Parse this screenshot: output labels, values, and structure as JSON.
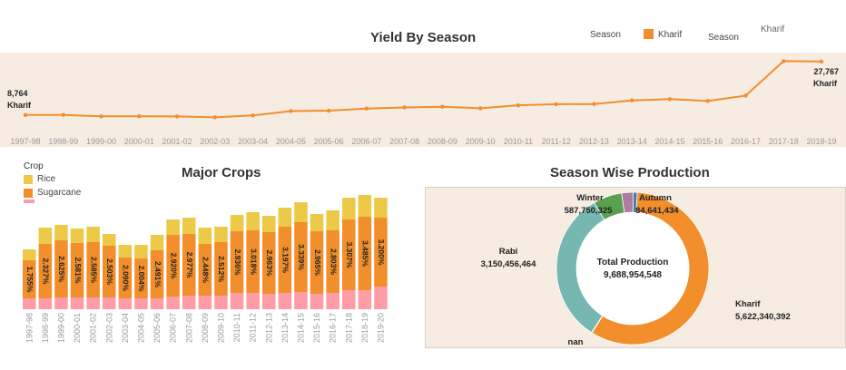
{
  "colors": {
    "kharif": "#f28e2b",
    "rice": "#edc948",
    "sugarcane": "#f28e2b",
    "third_crop": "#ff9da7",
    "rabi": "#76b7b2",
    "winter": "#59a14f",
    "autumn": "#4e79a7",
    "other": "#b07aa1",
    "panel": "#f6ece1"
  },
  "top_legend": {
    "season_label_1": "Season",
    "kharif_label": "Kharif",
    "season_label_2": "Season",
    "kharif_label_2": "Kharif"
  },
  "crops_legend": {
    "title": "Crop",
    "items": [
      "Rice",
      "Sugarcane"
    ]
  },
  "chart_data": [
    {
      "type": "line",
      "title": "Yield By Season",
      "series_name": "Kharif",
      "categories": [
        "1997-98",
        "1998-99",
        "1999-00",
        "2000-01",
        "2001-02",
        "2002-03",
        "2003-04",
        "2004-05",
        "2005-06",
        "2006-07",
        "2007-08",
        "2008-09",
        "2009-10",
        "2010-11",
        "2011-12",
        "2012-13",
        "2013-14",
        "2014-15",
        "2015-16",
        "2016-17",
        "2017-18",
        "2018-19"
      ],
      "values": [
        8764,
        8790,
        8280,
        8310,
        8240,
        7950,
        8600,
        10150,
        10300,
        11050,
        11450,
        11700,
        11150,
        12200,
        12600,
        12650,
        13950,
        14400,
        13750,
        15650,
        27900,
        27767
      ],
      "first_label": "8,764",
      "last_label": "27,767",
      "first_series_label": "Kharif",
      "last_series_label": "Kharif",
      "ylim": [
        0,
        29000
      ]
    },
    {
      "type": "bar",
      "title": "Major Crops",
      "categories": [
        "1997-98",
        "1998-99",
        "1999-00",
        "2000-01",
        "2001-02",
        "2002-03",
        "2003-04",
        "2004-05",
        "2005-06",
        "2006-07",
        "2007-08",
        "2008-09",
        "2009-10",
        "2010-11",
        "2011-12",
        "2012-13",
        "2013-14",
        "2014-15",
        "2015-16",
        "2016-17",
        "2017-18",
        "2018-19",
        "2019-20"
      ],
      "series": [
        {
          "name": "Rice",
          "values": [
            12,
            18,
            17,
            16,
            17,
            13,
            14,
            15,
            17,
            17,
            18,
            18,
            17,
            18,
            20,
            18,
            21,
            22,
            19,
            22,
            24,
            24,
            22
          ]
        },
        {
          "name": "Sugarcane",
          "values": [
            42,
            60,
            63,
            60,
            61,
            57,
            45,
            44,
            53,
            68,
            68,
            57,
            59,
            68,
            69,
            68,
            73,
            77,
            69,
            69,
            78,
            81,
            76
          ]
        },
        {
          "name": "",
          "values": [
            12,
            12,
            13,
            13,
            13,
            13,
            12,
            12,
            12,
            14,
            15,
            15,
            15,
            18,
            18,
            17,
            18,
            19,
            17,
            18,
            21,
            21,
            25
          ]
        }
      ],
      "data_labels": [
        "1.755%",
        "2.327%",
        "2.625%",
        "2.581%",
        "2.585%",
        "2.503%",
        "2.090%",
        "2.004%",
        "2.491%",
        "2.920%",
        "2.977%",
        "2.448%",
        "2.512%",
        "2.936%",
        "3.018%",
        "2.963%",
        "3.197%",
        "3.339%",
        "2.965%",
        "2.803%",
        "3.307%",
        "3.485%",
        "3.200%"
      ],
      "ylim": [
        0,
        130
      ]
    },
    {
      "type": "pie",
      "title": "Season Wise Production",
      "center_title": "Total Production",
      "center_value": "9,688,954,548",
      "slices": [
        {
          "name": "Kharif",
          "value": 5622340392,
          "label": "5,622,340,392"
        },
        {
          "name": "nan",
          "value": 10000000,
          "label": ""
        },
        {
          "name": "Rabi",
          "value": 3150456464,
          "label": "3,150,456,464"
        },
        {
          "name": "Winter",
          "value": 587750325,
          "label": "587,750,325"
        },
        {
          "name": "",
          "value": 233765933,
          "label": ""
        },
        {
          "name": "Autumn",
          "value": 84641434,
          "label": "84,641,434"
        }
      ]
    }
  ]
}
